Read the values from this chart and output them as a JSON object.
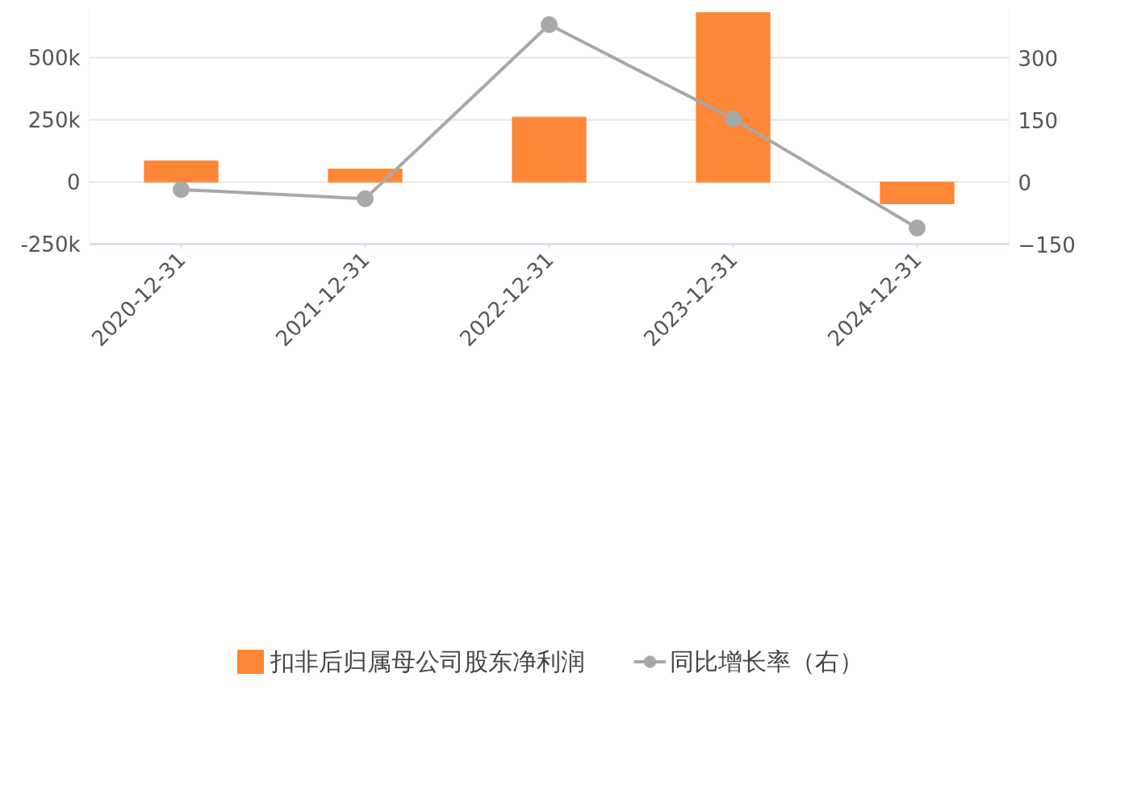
{
  "chart_data": {
    "type": "bar",
    "categories": [
      "2020-12-31",
      "2021-12-31",
      "2022-12-31",
      "2023-12-31",
      "2024-12-31"
    ],
    "series": [
      {
        "name": "扣非后归属母公司股东净利润",
        "color": "#fd8637",
        "values": [
          86000,
          53000,
          262000,
          683000,
          -87000
        ]
      },
      {
        "name": "同比增长率（右）",
        "type": "line",
        "axis": "y2",
        "color": "#a8a8a8",
        "values": [
          -18,
          -40,
          381,
          153,
          -111
        ]
      }
    ],
    "ylim": [
      -250000,
      700000
    ],
    "yticks": [
      {
        "value": -250000,
        "label": "-250k"
      },
      {
        "value": 0,
        "label": "0"
      },
      {
        "value": 250000,
        "label": "250k"
      },
      {
        "value": 500000,
        "label": "500k"
      }
    ],
    "y2lim": [
      -150,
      420
    ],
    "y2ticks": [
      -150,
      0,
      150,
      300
    ],
    "grid": "y",
    "legend": "bottom",
    "marker": "circle",
    "line_style": "solid"
  }
}
